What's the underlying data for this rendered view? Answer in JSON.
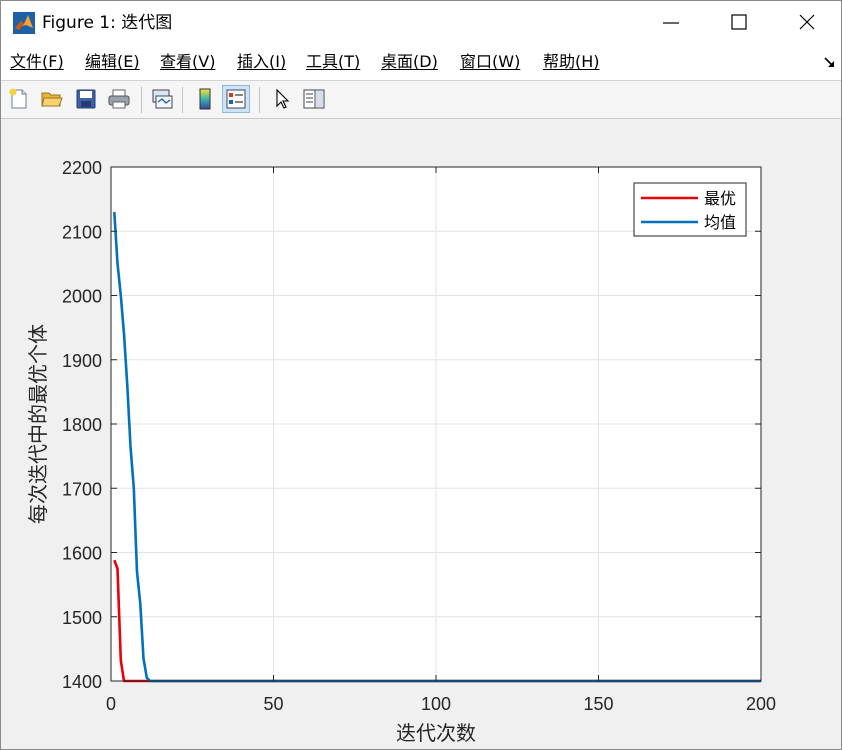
{
  "window": {
    "title": "Figure 1: 迭代图"
  },
  "menu": {
    "items": [
      {
        "label": "文件(F)"
      },
      {
        "label": "编辑(E)"
      },
      {
        "label": "查看(V)"
      },
      {
        "label": "插入(I)"
      },
      {
        "label": "工具(T)"
      },
      {
        "label": "桌面(D)"
      },
      {
        "label": "窗口(W)"
      },
      {
        "label": "帮助(H)"
      }
    ]
  },
  "toolbar": {
    "tools": [
      "new-figure-icon",
      "open-file-icon",
      "save-icon",
      "print-icon",
      "link-plot-icon",
      "colorbar-icon",
      "legend-icon",
      "pointer-icon",
      "property-inspector-icon"
    ]
  },
  "chart_data": {
    "type": "line",
    "xlabel": "迭代次数",
    "ylabel": "每次迭代中的最优个体",
    "xlim": [
      0,
      200
    ],
    "ylim": [
      1400,
      2200
    ],
    "xticks": [
      0,
      50,
      100,
      150,
      200
    ],
    "yticks": [
      1400,
      1500,
      1600,
      1700,
      1800,
      1900,
      2000,
      2100,
      2200
    ],
    "grid": true,
    "legend_position": "top-right",
    "series": [
      {
        "name": "最优",
        "color": "#e8000b",
        "x": [
          1,
          2,
          3,
          4,
          5,
          8,
          10,
          11,
          12,
          200
        ],
        "y": [
          1588,
          1575,
          1432,
          1400,
          1400,
          1400,
          1400,
          1400,
          1400,
          1400
        ]
      },
      {
        "name": "均值",
        "color": "#0072bd",
        "x": [
          1,
          2,
          3,
          4,
          5,
          6,
          7,
          8,
          9,
          10,
          11,
          12,
          13,
          200
        ],
        "y": [
          2130,
          2050,
          2000,
          1940,
          1860,
          1765,
          1700,
          1570,
          1520,
          1435,
          1405,
          1400,
          1400,
          1400
        ]
      }
    ]
  }
}
